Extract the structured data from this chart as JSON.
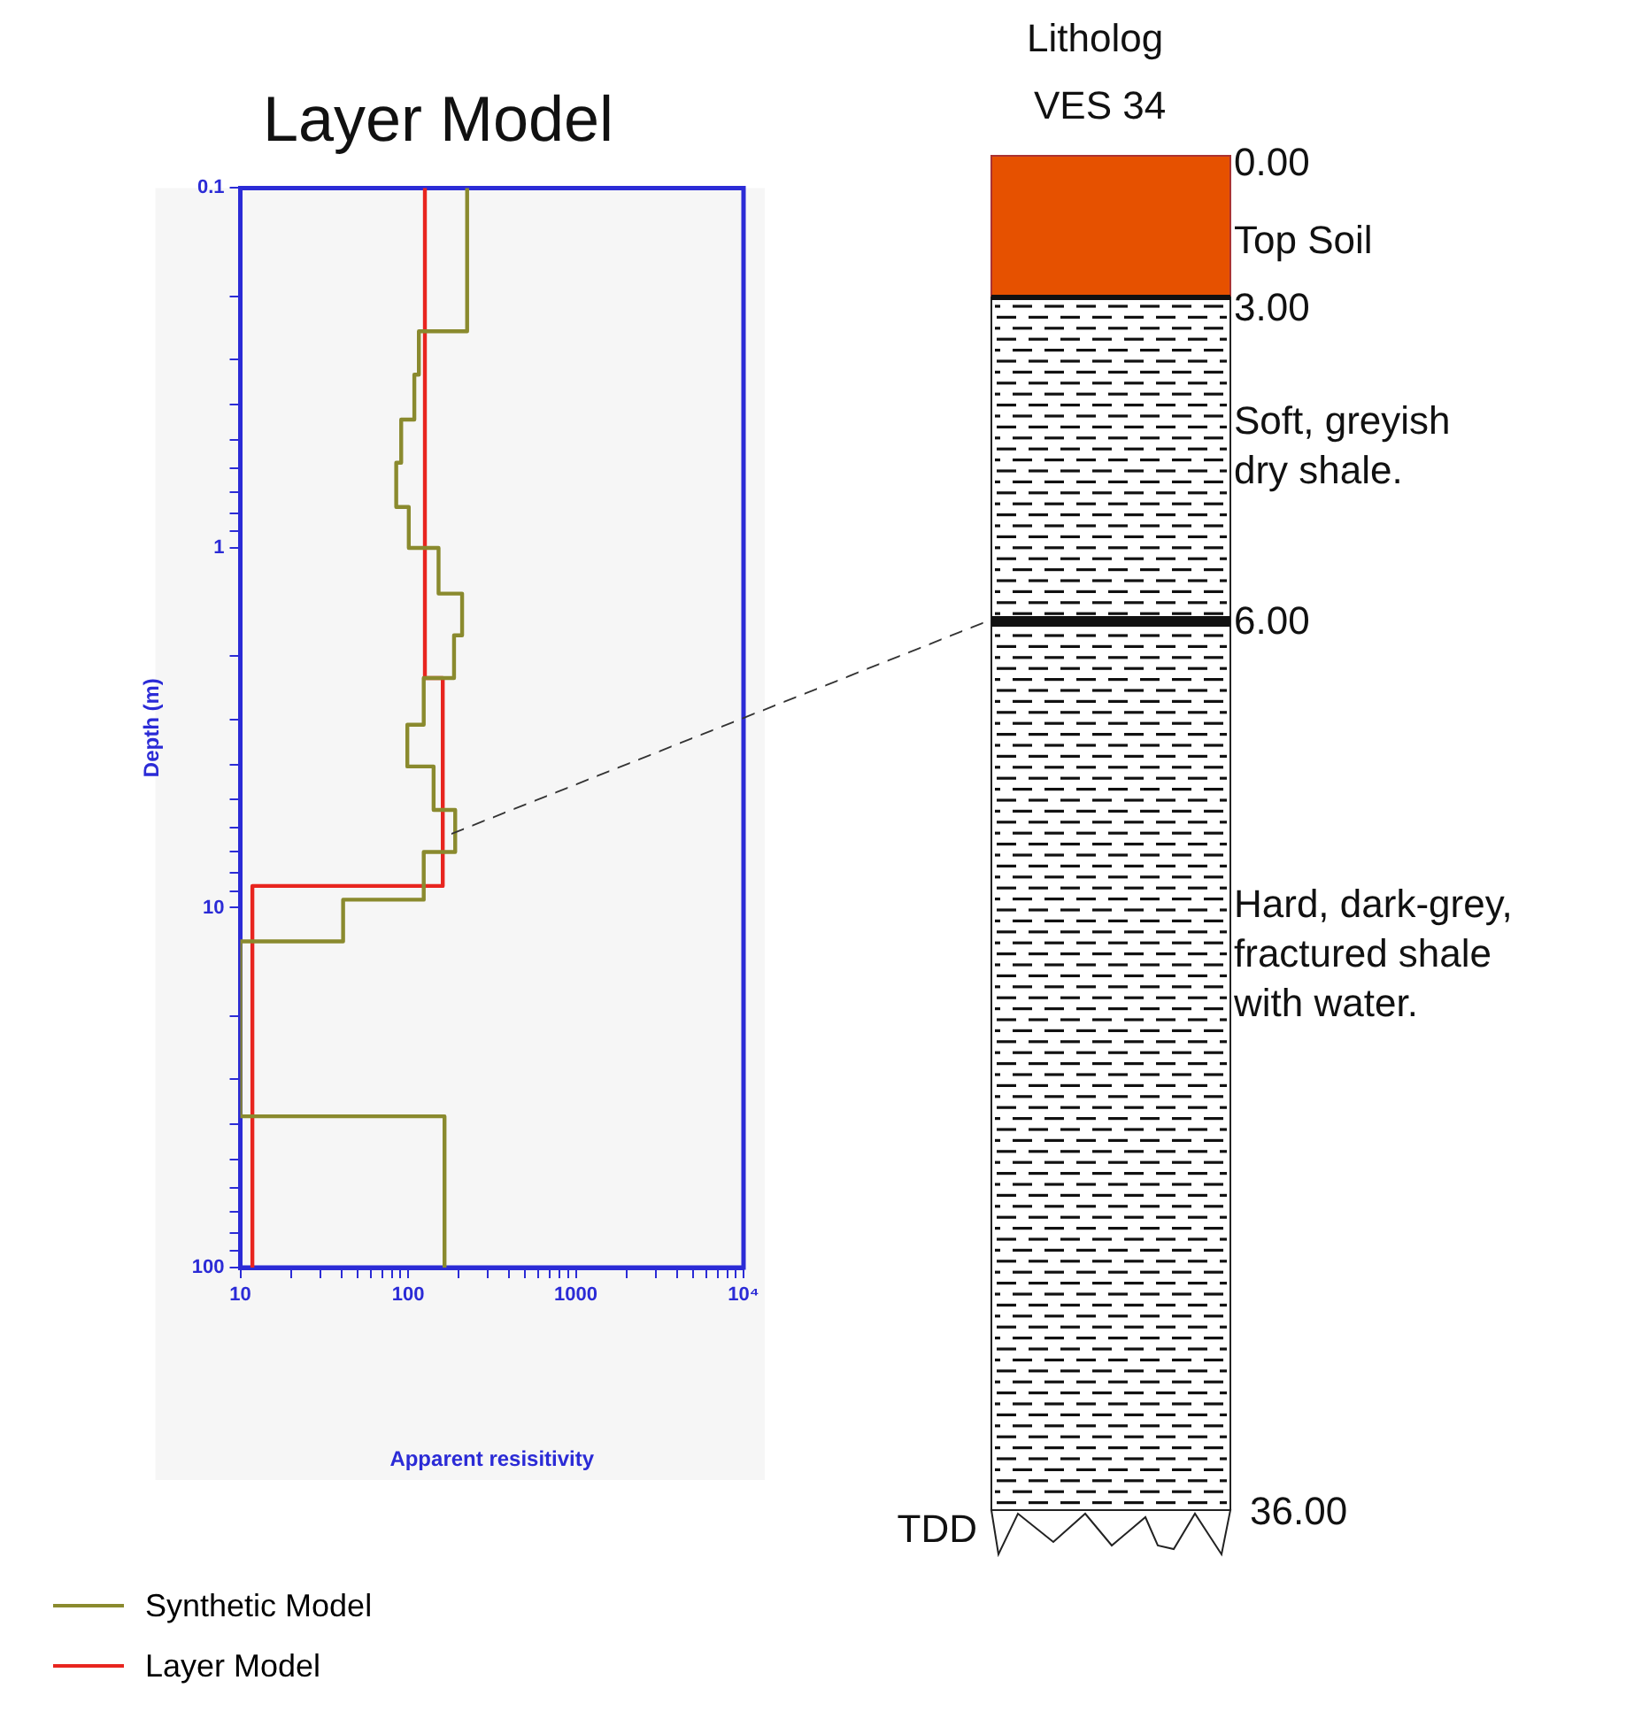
{
  "chart_data": [
    {
      "type": "line",
      "title": "Layer Model",
      "xlabel": "Apparent resisitivity",
      "ylabel": "Depth (m)",
      "log": "xy",
      "grid": false,
      "legend": "bottom left",
      "marker": "none",
      "line_style": "solid",
      "xlim": [
        10,
        10000
      ],
      "xticks": [
        10,
        {
          "value": 20,
          "label": null
        },
        {
          "value": 30,
          "label": null
        },
        {
          "value": 40,
          "label": null
        },
        {
          "value": 50,
          "label": null
        },
        {
          "value": 60,
          "label": null
        },
        {
          "value": 70,
          "label": null
        },
        {
          "value": 80,
          "label": null
        },
        {
          "value": 90,
          "label": null
        },
        100,
        {
          "value": 200,
          "label": null
        },
        {
          "value": 300,
          "label": null
        },
        {
          "value": 400,
          "label": null
        },
        {
          "value": 500,
          "label": null
        },
        {
          "value": 600,
          "label": null
        },
        {
          "value": 700,
          "label": null
        },
        {
          "value": 800,
          "label": null
        },
        {
          "value": 900,
          "label": null
        },
        1000,
        {
          "value": 2000,
          "label": null
        },
        {
          "value": 3000,
          "label": null
        },
        {
          "value": 4000,
          "label": null
        },
        {
          "value": 5000,
          "label": null
        },
        {
          "value": 6000,
          "label": null
        },
        {
          "value": 7000,
          "label": null
        },
        {
          "value": 8000,
          "label": null
        },
        {
          "value": 9000,
          "label": null
        },
        {
          "value": 10000,
          "label": "10⁴"
        }
      ],
      "ylim": [
        100,
        0.1
      ],
      "yticks": [
        0.1,
        {
          "value": 0.2,
          "label": null
        },
        {
          "value": 0.3,
          "label": null
        },
        {
          "value": 0.4,
          "label": null
        },
        {
          "value": 0.5,
          "label": null
        },
        {
          "value": 0.6,
          "label": null
        },
        {
          "value": 0.7,
          "label": null
        },
        {
          "value": 0.8,
          "label": null
        },
        {
          "value": 0.9,
          "label": null
        },
        1,
        {
          "value": 2,
          "label": null
        },
        {
          "value": 3,
          "label": null
        },
        {
          "value": 4,
          "label": null
        },
        {
          "value": 5,
          "label": null
        },
        {
          "value": 6,
          "label": null
        },
        {
          "value": 7,
          "label": null
        },
        {
          "value": 8,
          "label": null
        },
        {
          "value": 9,
          "label": null
        },
        10,
        {
          "value": 20,
          "label": null
        },
        {
          "value": 30,
          "label": null
        },
        {
          "value": 40,
          "label": null
        },
        {
          "value": 50,
          "label": null
        },
        {
          "value": 60,
          "label": null
        },
        {
          "value": 70,
          "label": null
        },
        {
          "value": 80,
          "label": null
        },
        {
          "value": 90,
          "label": null
        },
        100
      ],
      "series": [
        {
          "name": "Synthetic Model",
          "color": "#8a8a2e",
          "x": [
            225,
            225,
            116,
            116,
            109,
            109,
            91,
            91,
            85,
            85,
            101,
            101,
            152,
            152,
            210,
            210,
            188,
            188,
            124,
            124,
            99,
            99,
            142,
            142,
            191,
            191,
            124,
            124,
            41,
            41,
            10,
            10,
            165,
            165
          ],
          "values": [
            0.1,
            0.25,
            0.25,
            0.33,
            0.33,
            0.44,
            0.44,
            0.58,
            0.58,
            0.77,
            0.77,
            1.0,
            1.0,
            1.34,
            1.34,
            1.75,
            1.75,
            2.3,
            2.3,
            3.1,
            3.1,
            4.05,
            4.05,
            5.35,
            5.35,
            7.0,
            7.0,
            9.5,
            9.5,
            12.4,
            12.4,
            38,
            38,
            100
          ]
        },
        {
          "name": "Layer Model",
          "color": "#e8251f",
          "x": [
            126,
            126,
            161,
            161,
            11.8,
            11.8
          ],
          "values": [
            0.1,
            2.3,
            2.3,
            8.7,
            8.7,
            100
          ]
        }
      ]
    },
    {
      "type": "other",
      "title": "Litholog",
      "subtitle": "VES 34",
      "annotations": [
        "0.00",
        "Top Soil",
        "3.00",
        "Soft, greyish dry shale.",
        "6.00",
        "Hard, dark-grey, fractured shale with water.",
        "TDD",
        "36.00"
      ]
    }
  ]
}
